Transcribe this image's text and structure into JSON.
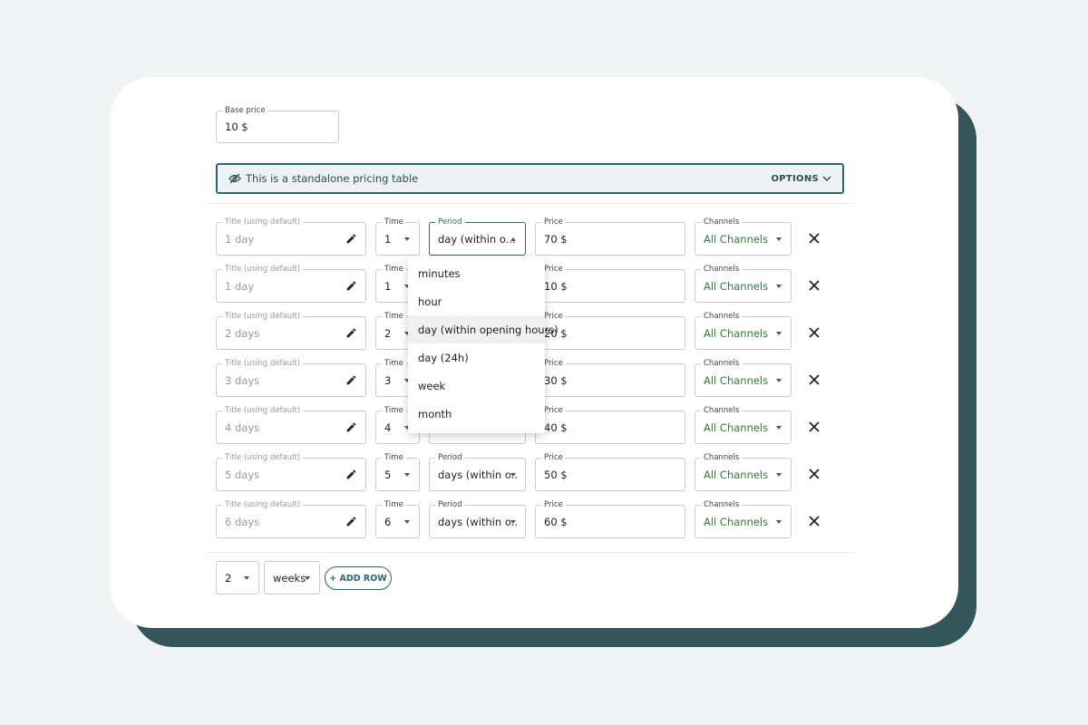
{
  "base_price": {
    "label": "Base price",
    "value": "10 $"
  },
  "banner": {
    "text": "This is a standalone pricing table",
    "options": "OPTIONS"
  },
  "rows": [
    {
      "title_label": "Title (using default)",
      "title": "1 day",
      "time_label": "Time",
      "time": "1",
      "period_label": "Period",
      "period": "day (within o...",
      "price_label": "Price",
      "price": "70 $",
      "channels_label": "Channels",
      "channels": "All Channels"
    },
    {
      "title_label": "Title (using default)",
      "title": "1 day",
      "time_label": "Time",
      "time": "1",
      "price_label": "Price",
      "price": "10 $",
      "channels_label": "Channels",
      "channels": "All Channels"
    },
    {
      "title_label": "Title (using default)",
      "title": "2 days",
      "time_label": "Time",
      "time": "2",
      "price_label": "Price",
      "price": "20 $",
      "channels_label": "Channels",
      "channels": "All Channels"
    },
    {
      "title_label": "Title (using default)",
      "title": "3 days",
      "time_label": "Time",
      "time": "3",
      "price_label": "Price",
      "price": "30 $",
      "channels_label": "Channels",
      "channels": "All Channels"
    },
    {
      "title_label": "Title (using default)",
      "title": "4 days",
      "time_label": "Time",
      "time": "4",
      "price_label": "Price",
      "price": "40 $",
      "channels_label": "Channels",
      "channels": "All Channels"
    },
    {
      "title_label": "Title (using default)",
      "title": "5 days",
      "time_label": "Time",
      "time": "5",
      "period_label": "Period",
      "period": "days (within o...",
      "price_label": "Price",
      "price": "50 $",
      "channels_label": "Channels",
      "channels": "All Channels"
    },
    {
      "title_label": "Title (using default)",
      "title": "6 days",
      "time_label": "Time",
      "time": "6",
      "period_label": "Period",
      "period": "days (within o...",
      "price_label": "Price",
      "price": "60 $",
      "channels_label": "Channels",
      "channels": "All Channels"
    }
  ],
  "dropdown": {
    "options": [
      "minutes",
      "hour",
      "day (within opening hours)",
      "day (24h)",
      "week",
      "month"
    ],
    "highlighted": 2
  },
  "footer": {
    "count": "2",
    "unit": "weeks",
    "add_row": "+ ADD ROW"
  }
}
